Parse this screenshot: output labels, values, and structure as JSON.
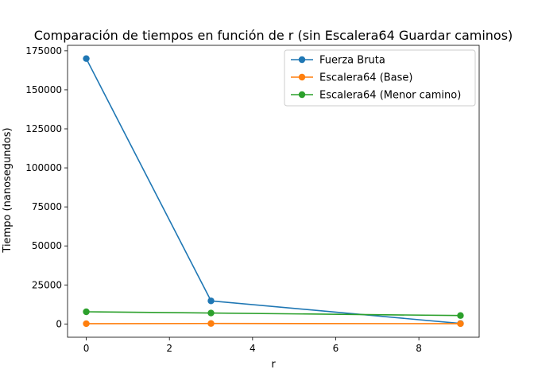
{
  "chart_data": {
    "type": "line",
    "title": "Comparación de tiempos en función de r (sin Escalera64 Guardar caminos)",
    "xlabel": "r",
    "ylabel": "Tiempo (nanosegundos)",
    "xlim": [
      -0.45,
      9.45
    ],
    "ylim": [
      -8500,
      178500
    ],
    "xticks": [
      0,
      2,
      4,
      6,
      8
    ],
    "xtick_labels": [
      "0",
      "2",
      "4",
      "6",
      "8"
    ],
    "yticks": [
      0,
      25000,
      50000,
      75000,
      100000,
      125000,
      150000,
      175000
    ],
    "ytick_labels": [
      "0",
      "25000",
      "50000",
      "75000",
      "100000",
      "125000",
      "150000",
      "175000"
    ],
    "grid": false,
    "legend_position": "top-right",
    "x": [
      0,
      3,
      9
    ],
    "series": [
      {
        "name": "Fuerza Bruta",
        "color": "#1f77b4",
        "values": [
          170000,
          14800,
          300
        ]
      },
      {
        "name": "Escalera64 (Base)",
        "color": "#ff7f0e",
        "values": [
          200,
          300,
          200
        ]
      },
      {
        "name": "Escalera64 (Menor camino)",
        "color": "#2ca02c",
        "values": [
          7800,
          7000,
          5400
        ]
      }
    ]
  }
}
